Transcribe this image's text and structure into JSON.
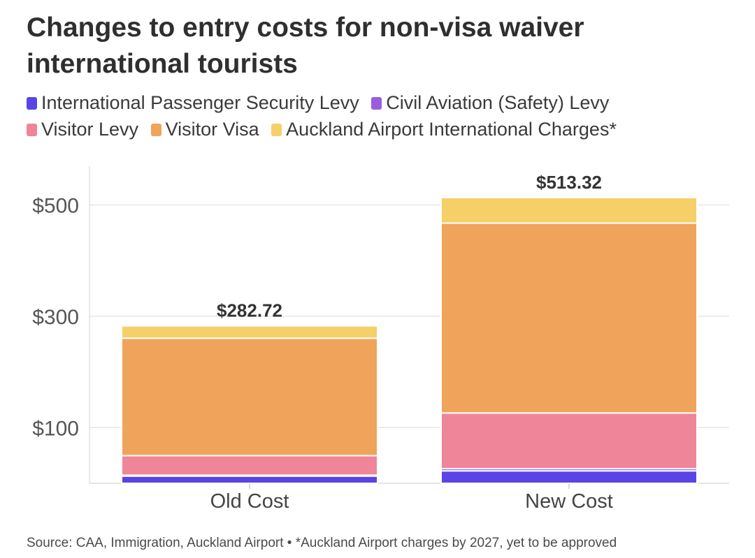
{
  "title": "Changes to entry costs for non-visa waiver international tourists",
  "source_note": "Source: CAA, Immigration, Auckland Airport • *Auckland Airport charges by 2027, yet to be approved",
  "colors": {
    "International Passenger Security Levy": "#5b44e5",
    "Civil Aviation (Safety) Levy": "#9a5de0",
    "Visitor Levy": "#ee8598",
    "Visitor Visa": "#f0a35a",
    "Auckland Airport International Charges*": "#f5cf67"
  },
  "chart_data": {
    "type": "bar",
    "stacked": true,
    "title": "Changes to entry costs for non-visa waiver international tourists",
    "categories": [
      "Old Cost",
      "New Cost"
    ],
    "series": [
      {
        "name": "International Passenger Security Levy",
        "values": [
          12.92,
          22.34
        ]
      },
      {
        "name": "Civil Aviation (Safety) Levy",
        "values": [
          1.72,
          3.97
        ]
      },
      {
        "name": "Visitor Levy",
        "values": [
          35,
          100
        ]
      },
      {
        "name": "Visitor Visa",
        "values": [
          211,
          341
        ]
      },
      {
        "name": "Auckland Airport International Charges*",
        "values": [
          22.08,
          46.01
        ]
      }
    ],
    "totals": [
      282.72,
      513.32
    ],
    "total_labels": [
      "$282.72",
      "$513.32"
    ],
    "yticks": [
      100,
      300,
      500
    ],
    "ytick_labels": [
      "$100",
      "$300",
      "$500"
    ],
    "ylim": [
      0,
      560
    ],
    "xlabel": "",
    "ylabel": "",
    "grid": true,
    "legend_position": "top"
  }
}
